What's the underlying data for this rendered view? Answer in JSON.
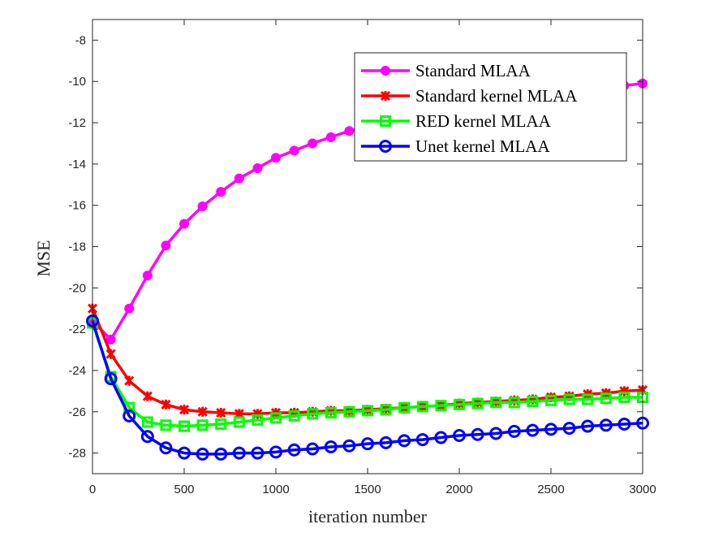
{
  "chart_data": {
    "type": "line",
    "title": "",
    "xlabel": "iteration number",
    "ylabel": "MSE",
    "xlim": [
      0,
      3000
    ],
    "ylim": [
      -29,
      -7
    ],
    "xticks": [
      0,
      500,
      1000,
      1500,
      2000,
      2500,
      3000
    ],
    "yticks": [
      -8,
      -10,
      -12,
      -14,
      -16,
      -18,
      -20,
      -22,
      -24,
      -26,
      -28
    ],
    "grid": false,
    "legend_position": "top-right",
    "x": [
      0,
      100,
      200,
      300,
      400,
      500,
      600,
      700,
      800,
      900,
      1000,
      1100,
      1200,
      1300,
      1400,
      1500,
      1600,
      1700,
      1800,
      1900,
      2000,
      2100,
      2200,
      2300,
      2400,
      2500,
      2600,
      2700,
      2800,
      2900,
      3000
    ],
    "series": [
      {
        "name": "Standard MLAA",
        "color": "#ff00ff",
        "marker": "filled-circle",
        "values": [
          -21.6,
          -22.5,
          -21.0,
          -19.4,
          -17.95,
          -16.9,
          -16.05,
          -15.35,
          -14.7,
          -14.2,
          -13.7,
          -13.35,
          -13.0,
          -12.7,
          -12.4,
          -12.15,
          -11.9,
          -11.7,
          -11.5,
          -11.3,
          -11.15,
          -11.0,
          -10.85,
          -10.75,
          -10.65,
          -10.55,
          -10.45,
          -10.35,
          -10.25,
          -10.2,
          -10.1
        ]
      },
      {
        "name": "Standard kernel MLAA",
        "color": "#ff0000",
        "marker": "asterisk",
        "values": [
          -21.0,
          -23.2,
          -24.5,
          -25.25,
          -25.65,
          -25.9,
          -26.0,
          -26.05,
          -26.1,
          -26.1,
          -26.05,
          -26.05,
          -26.0,
          -25.95,
          -25.95,
          -25.9,
          -25.85,
          -25.8,
          -25.75,
          -25.7,
          -25.6,
          -25.55,
          -25.5,
          -25.45,
          -25.4,
          -25.3,
          -25.25,
          -25.15,
          -25.1,
          -25.0,
          -24.95
        ]
      },
      {
        "name": "RED kernel MLAA",
        "color": "#00ff00",
        "marker": "square",
        "values": [
          -21.7,
          -24.3,
          -25.8,
          -26.5,
          -26.65,
          -26.7,
          -26.65,
          -26.6,
          -26.5,
          -26.4,
          -26.3,
          -26.2,
          -26.1,
          -26.05,
          -26.0,
          -25.95,
          -25.9,
          -25.8,
          -25.75,
          -25.7,
          -25.65,
          -25.6,
          -25.55,
          -25.55,
          -25.5,
          -25.45,
          -25.4,
          -25.4,
          -25.35,
          -25.3,
          -25.3
        ]
      },
      {
        "name": "Unet kernel MLAA",
        "color": "#0000ff",
        "marker": "circle",
        "values": [
          -21.6,
          -24.4,
          -26.2,
          -27.2,
          -27.75,
          -28.0,
          -28.05,
          -28.05,
          -28.0,
          -28.0,
          -27.95,
          -27.85,
          -27.8,
          -27.7,
          -27.65,
          -27.55,
          -27.5,
          -27.4,
          -27.35,
          -27.25,
          -27.15,
          -27.1,
          -27.05,
          -26.95,
          -26.9,
          -26.85,
          -26.8,
          -26.7,
          -26.65,
          -26.6,
          -26.55
        ]
      }
    ]
  }
}
